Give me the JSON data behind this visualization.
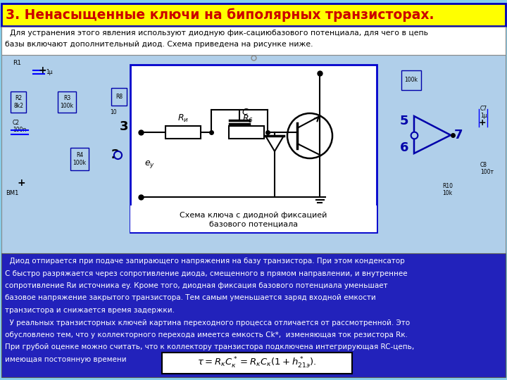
{
  "title": "3. Ненасыщенные ключи на биполярных транзисторах.",
  "title_color": "#CC0000",
  "title_bg": "#FFFF00",
  "title_border": "#0000BB",
  "bg_color": "#87CEEB",
  "text_box_bg": "#2222BB",
  "text_box_color": "#FFFFFF",
  "intro_text_1": "  Для устранения этого явления используют диодную фик-сациюбазового потенциала, для чего в цепь",
  "intro_text_2": "базы включают дополнительный диод. Схема приведена на рисунке ниже.",
  "main_text_lines": [
    "  Диод отпирается при подаче запирающего напряжения на базу транзистора. При этом конденсатор",
    "C быстро разряжается через сопротивление диода, смещенного в прямом направлении, и внутреннее",
    "сопротивление Rи источника ey. Кроме того, диодная фиксация базового потенциала уменьшает",
    "базовое напряжение закрытого транзистора. Тем самым уменьшается заряд входной емкости",
    "транзистора и снижается время задержки.",
    "  У реальных транзисторных ключей картина переходного процесса отличается от рассмотренной. Это",
    "обусловлено тем, что у коллекторного перехода имеется емкость Ck*,  изменяющая ток резистора Rк.",
    "При грубой оценке можно считать, что к коллектору транзистора подключена интегрирующая RC-цепь,",
    "имеющая постоянную времени"
  ],
  "caption_line1": "Схема ключа с диодной фиксацией",
  "caption_line2": "базового потенциала",
  "circuit_border": "#0000CC",
  "schema_bg": "#D8ECFF",
  "circuit_bg": "#B0CFEA"
}
